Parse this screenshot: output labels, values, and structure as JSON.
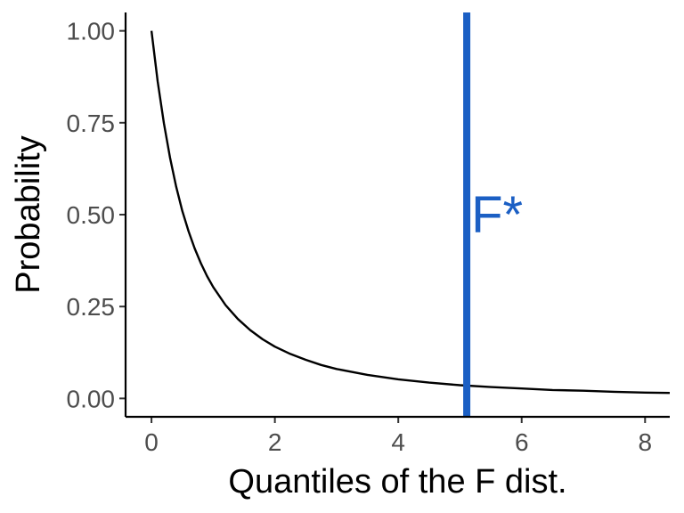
{
  "chart_data": {
    "type": "line",
    "title": "",
    "xlabel": "Quantiles of the F dist.",
    "ylabel": "Probability",
    "xlim": [
      -0.42,
      8.4
    ],
    "ylim": [
      -0.05,
      1.05
    ],
    "x_ticks": [
      0,
      2,
      4,
      6,
      8
    ],
    "x_tick_labels": [
      "0",
      "2",
      "4",
      "6",
      "8"
    ],
    "y_ticks": [
      0,
      0.25,
      0.5,
      0.75,
      1
    ],
    "y_tick_labels": [
      "0.00",
      "0.25",
      "0.50",
      "0.75",
      "1.00"
    ],
    "grid": false,
    "legend": "none",
    "series": [
      {
        "color": "#000000",
        "x": [
          0,
          0.1,
          0.2,
          0.3,
          0.4,
          0.5,
          0.6,
          0.7,
          0.8,
          0.9,
          1.0,
          1.2,
          1.4,
          1.6,
          1.8,
          2.0,
          2.25,
          2.5,
          2.75,
          3.0,
          3.5,
          4.0,
          4.5,
          5.0,
          5.5,
          6.0,
          6.5,
          7.0,
          7.5,
          8.0,
          8.4
        ],
        "y": [
          1.0,
          0.863,
          0.749,
          0.655,
          0.576,
          0.51,
          0.455,
          0.408,
          0.368,
          0.333,
          0.303,
          0.254,
          0.216,
          0.186,
          0.161,
          0.141,
          0.121,
          0.105,
          0.091,
          0.08,
          0.064,
          0.052,
          0.043,
          0.036,
          0.031,
          0.027,
          0.023,
          0.021,
          0.018,
          0.016,
          0.015
        ]
      }
    ],
    "vline": {
      "x": 5.11,
      "color": "#1b5fc4"
    },
    "annotations": [
      {
        "text": "F*",
        "x": 5.11,
        "y": 0.5,
        "color": "#1b5fc4"
      }
    ]
  }
}
